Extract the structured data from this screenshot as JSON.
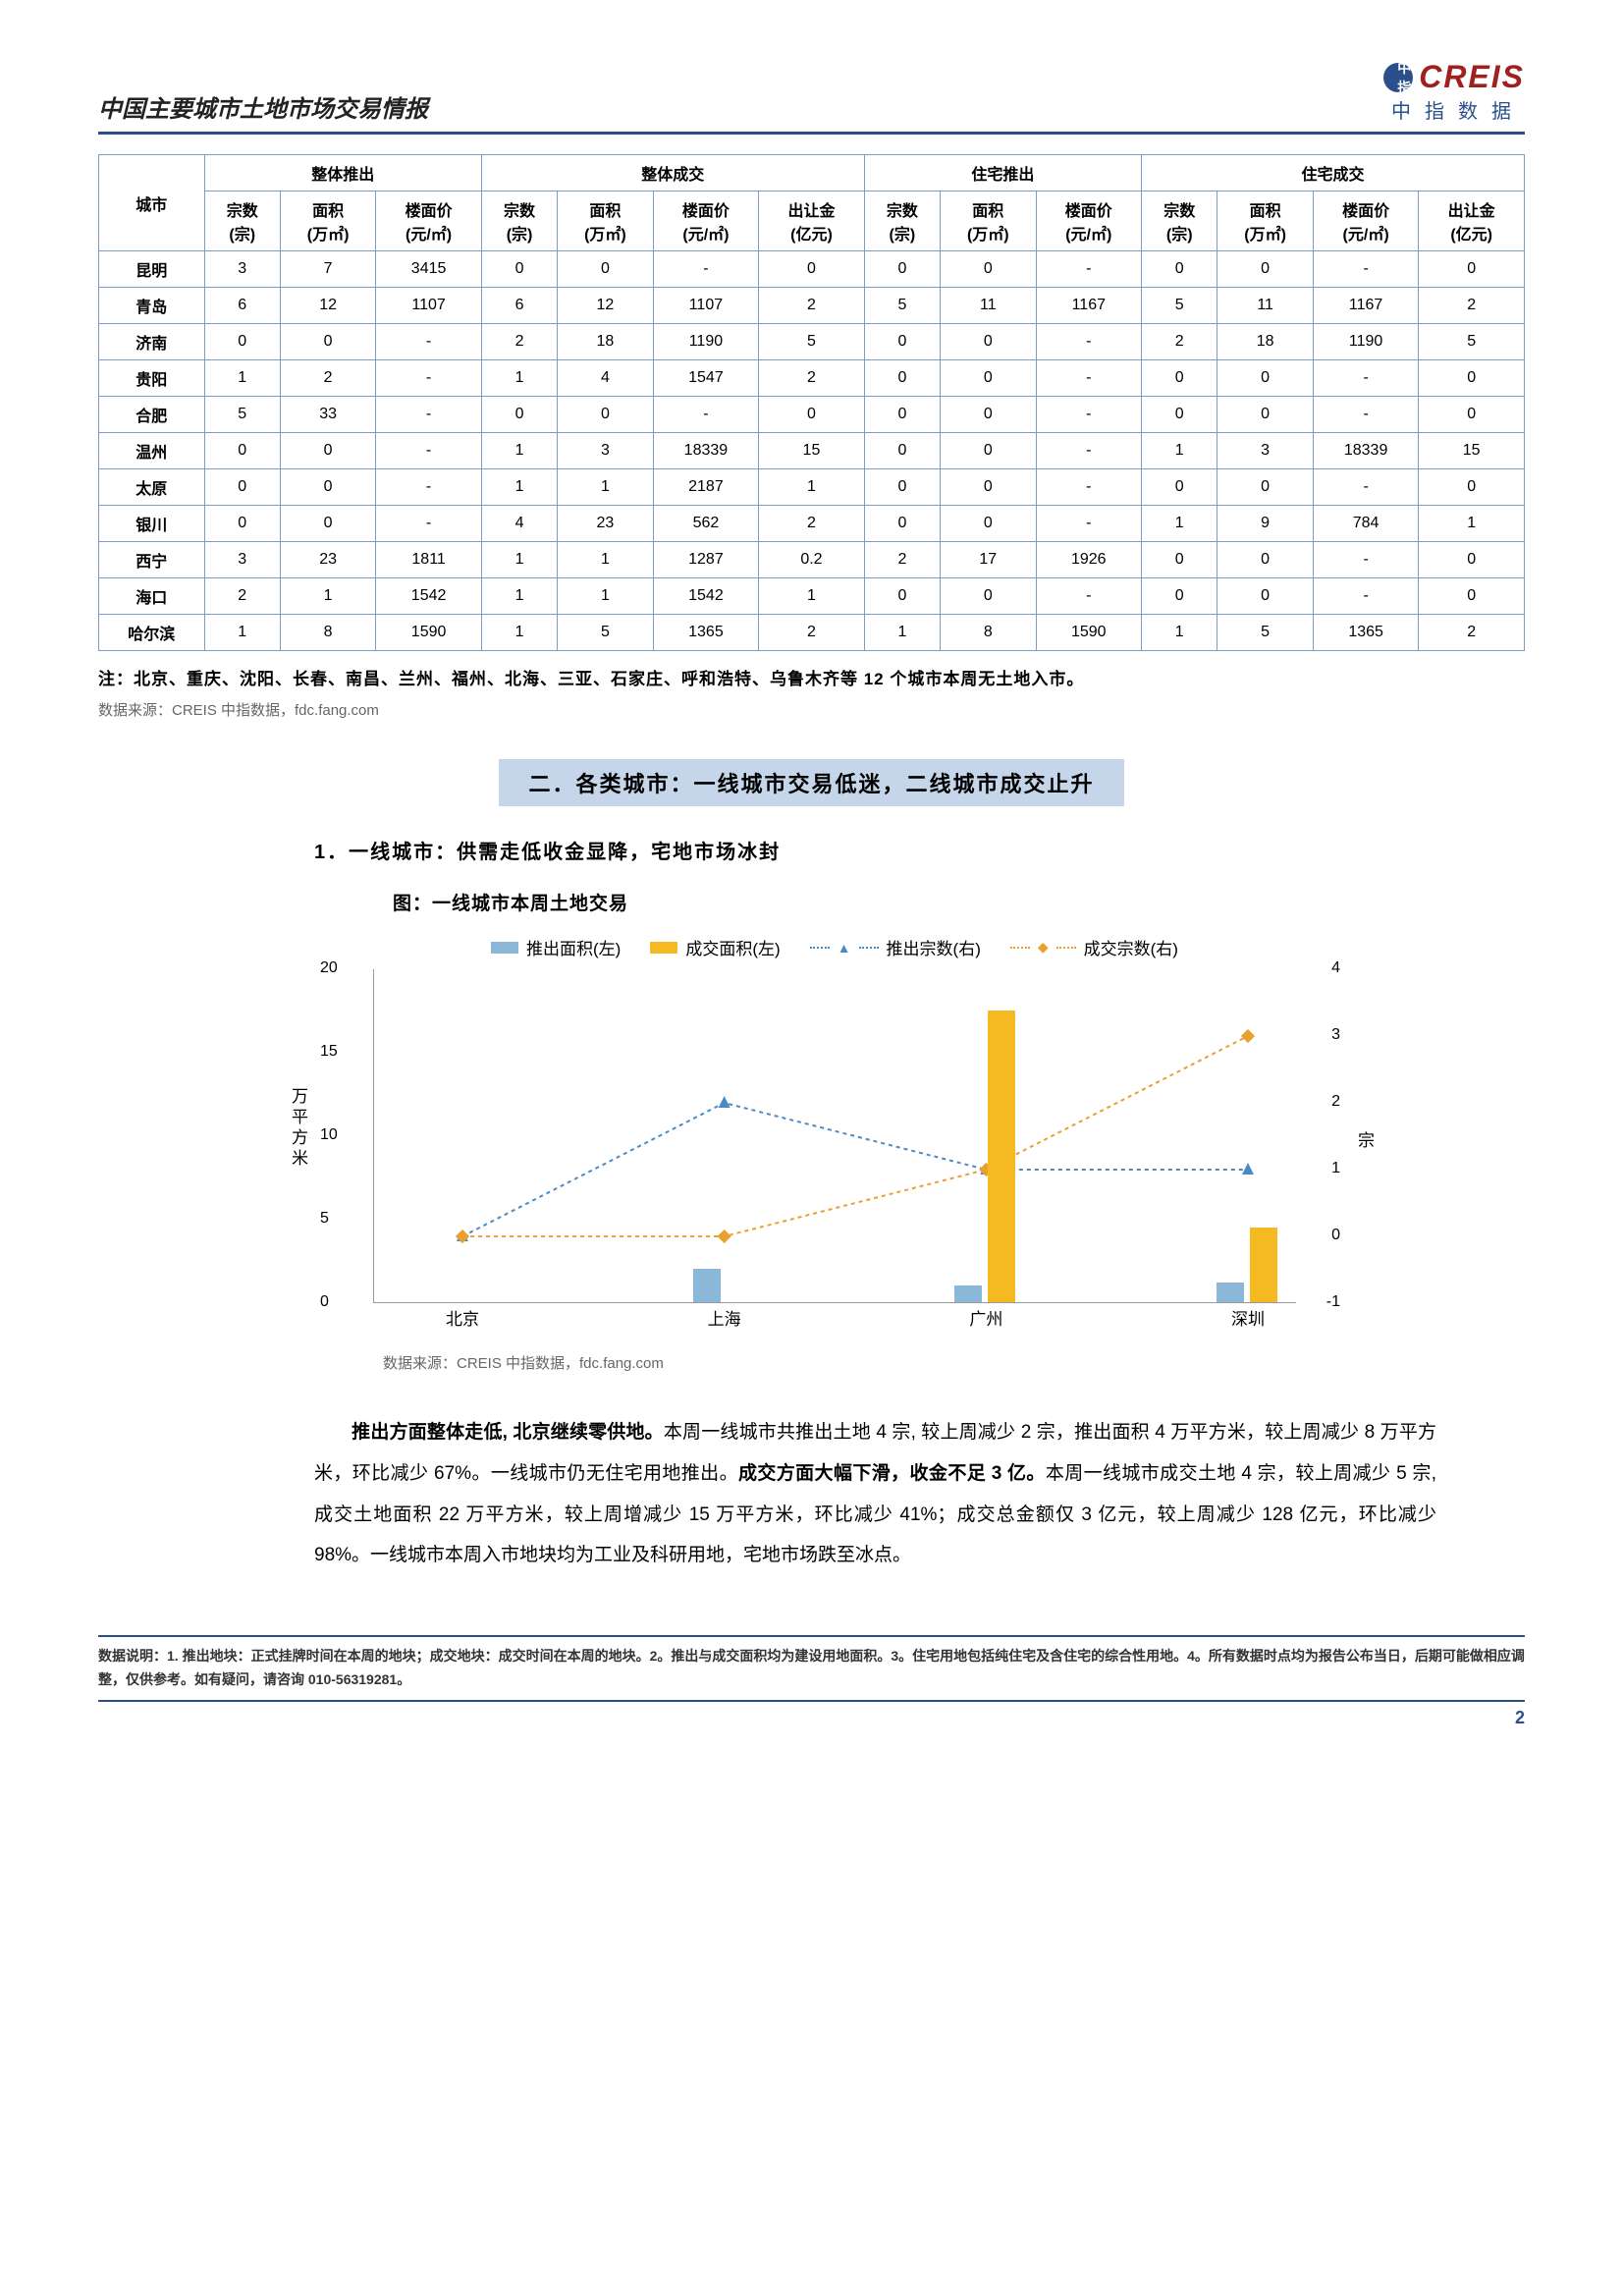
{
  "header": {
    "title": "中国主要城市土地市场交易情报"
  },
  "logo": {
    "brand": "CREIS",
    "sub": "中指数据",
    "badge": "中指"
  },
  "table": {
    "group_headers": [
      "整体推出",
      "整体成交",
      "住宅推出",
      "住宅成交"
    ],
    "city_label": "城市",
    "sub_headers": {
      "g1": [
        "宗数(宗)",
        "面积(万㎡)",
        "楼面价(元/㎡)"
      ],
      "g2": [
        "宗数(宗)",
        "面积(万㎡)",
        "楼面价(元/㎡)",
        "出让金(亿元)"
      ],
      "g3": [
        "宗数(宗)",
        "面积(万㎡)",
        "楼面价(元/㎡)"
      ],
      "g4": [
        "宗数(宗)",
        "面积(万㎡)",
        "楼面价(元/㎡)",
        "出让金(亿元)"
      ]
    },
    "rows": [
      {
        "city": "昆明",
        "c": [
          "3",
          "7",
          "3415",
          "0",
          "0",
          "-",
          "0",
          "0",
          "0",
          "-",
          "0",
          "0",
          "-",
          "0"
        ]
      },
      {
        "city": "青岛",
        "c": [
          "6",
          "12",
          "1107",
          "6",
          "12",
          "1107",
          "2",
          "5",
          "11",
          "1167",
          "5",
          "11",
          "1167",
          "2"
        ]
      },
      {
        "city": "济南",
        "c": [
          "0",
          "0",
          "-",
          "2",
          "18",
          "1190",
          "5",
          "0",
          "0",
          "-",
          "2",
          "18",
          "1190",
          "5"
        ]
      },
      {
        "city": "贵阳",
        "c": [
          "1",
          "2",
          "-",
          "1",
          "4",
          "1547",
          "2",
          "0",
          "0",
          "-",
          "0",
          "0",
          "-",
          "0"
        ]
      },
      {
        "city": "合肥",
        "c": [
          "5",
          "33",
          "-",
          "0",
          "0",
          "-",
          "0",
          "0",
          "0",
          "-",
          "0",
          "0",
          "-",
          "0"
        ]
      },
      {
        "city": "温州",
        "c": [
          "0",
          "0",
          "-",
          "1",
          "3",
          "18339",
          "15",
          "0",
          "0",
          "-",
          "1",
          "3",
          "18339",
          "15"
        ]
      },
      {
        "city": "太原",
        "c": [
          "0",
          "0",
          "-",
          "1",
          "1",
          "2187",
          "1",
          "0",
          "0",
          "-",
          "0",
          "0",
          "-",
          "0"
        ]
      },
      {
        "city": "银川",
        "c": [
          "0",
          "0",
          "-",
          "4",
          "23",
          "562",
          "2",
          "0",
          "0",
          "-",
          "1",
          "9",
          "784",
          "1"
        ]
      },
      {
        "city": "西宁",
        "c": [
          "3",
          "23",
          "1811",
          "1",
          "1",
          "1287",
          "0.2",
          "2",
          "17",
          "1926",
          "0",
          "0",
          "-",
          "0"
        ]
      },
      {
        "city": "海口",
        "c": [
          "2",
          "1",
          "1542",
          "1",
          "1",
          "1542",
          "1",
          "0",
          "0",
          "-",
          "0",
          "0",
          "-",
          "0"
        ]
      },
      {
        "city": "哈尔滨",
        "c": [
          "1",
          "8",
          "1590",
          "1",
          "5",
          "1365",
          "2",
          "1",
          "8",
          "1590",
          "1",
          "5",
          "1365",
          "2"
        ]
      }
    ],
    "note": "注：北京、重庆、沈阳、长春、南昌、兰州、福州、北海、三亚、石家庄、呼和浩特、乌鲁木齐等 12 个城市本周无土地入市。",
    "source": "数据来源：CREIS 中指数据，fdc.fang.com"
  },
  "section": {
    "title": "二．各类城市：一线城市交易低迷，二线城市成交止升",
    "sub": "1．一线城市：供需走低收金显降，宅地市场冰封",
    "chart_title": "图：一线城市本周土地交易"
  },
  "chart": {
    "type": "bar+line",
    "categories": [
      "北京",
      "上海",
      "广州",
      "深圳"
    ],
    "legend": [
      "推出面积(左)",
      "成交面积(左)",
      "推出宗数(右)",
      "成交宗数(右)"
    ],
    "colors": {
      "bar1": "#8bb8d8",
      "bar2": "#f5b921",
      "line1": "#4a8bc5",
      "line2": "#e8a030"
    },
    "y_left": {
      "min": 0,
      "max": 20,
      "ticks": [
        0,
        5,
        10,
        15,
        20
      ],
      "label": "万平方米"
    },
    "y_right": {
      "min": -1,
      "max": 4,
      "ticks": [
        -1,
        0,
        1,
        2,
        3,
        4
      ],
      "label": "宗"
    },
    "series": {
      "bar_pushed_area": [
        0,
        2,
        1,
        1.2
      ],
      "bar_deal_area": [
        0,
        0,
        17.5,
        4.5
      ],
      "line_pushed_count": [
        0,
        2,
        1,
        1
      ],
      "line_deal_count": [
        0,
        0,
        1,
        3
      ]
    },
    "source": "数据来源：CREIS 中指数据，fdc.fang.com"
  },
  "paragraph": {
    "t1": "推出方面整体走低, 北京继续零供地。",
    "t2": "本周一线城市共推出土地 4 宗, 较上周减少 2 宗，推出面积 4 万平方米，较上周减少 8 万平方米，环比减少 67%。一线城市仍无住宅用地推出。",
    "t3": "成交方面大幅下滑，收金不足 3 亿。",
    "t4": "本周一线城市成交土地 4 宗，较上周减少 5 宗, 成交土地面积 22 万平方米，较上周增减少 15 万平方米，环比减少 41%；成交总金额仅 3 亿元，较上周减少 128 亿元，环比减少 98%。一线城市本周入市地块均为工业及科研用地，宅地市场跌至冰点。"
  },
  "footer": {
    "text": "数据说明：1. 推出地块：正式挂牌时间在本周的地块；成交地块：成交时间在本周的地块。2。推出与成交面积均为建设用地面积。3。住宅用地包括纯住宅及含住宅的综合性用地。4。所有数据时点均为报告公布当日，后期可能做相应调整，仅供参考。如有疑问，请咨询 010-56319281。",
    "page": "2"
  }
}
